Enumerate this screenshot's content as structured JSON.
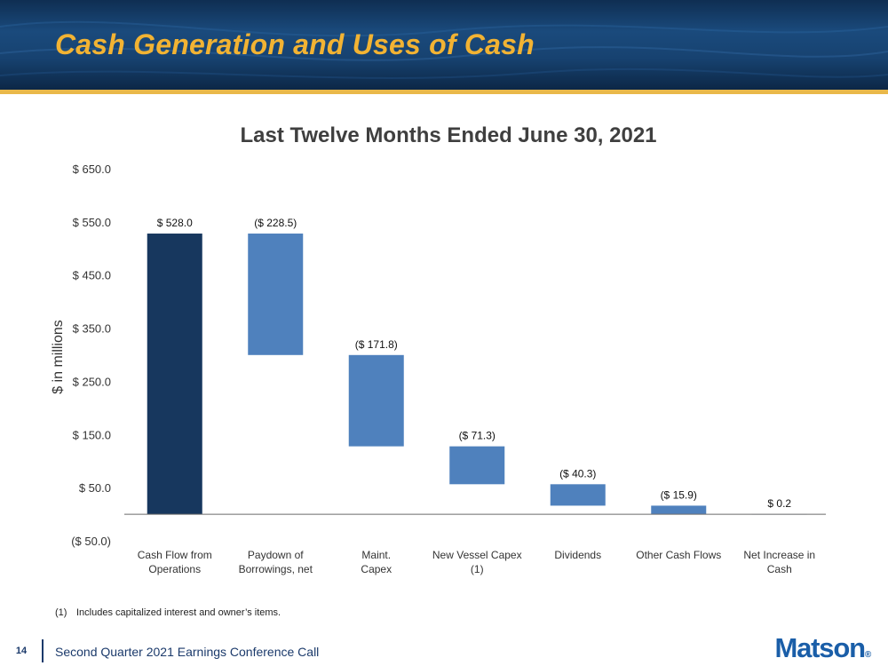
{
  "slide": {
    "title": "Cash Generation and Uses of Cash",
    "page_number": "14",
    "footer_text": "Second Quarter 2021 Earnings Conference Call",
    "logo_text": "Matson",
    "footnote_number": "(1)",
    "footnote_text": "Includes capitalized interest and owner’s items."
  },
  "colors": {
    "header_dark": "#0f2e52",
    "title_gold": "#f2b333",
    "gold_rule": "#e9b84a",
    "bar_total": "#17375e",
    "bar_change": "#4f81bd",
    "footer_blue": "#1b3a6b",
    "logo_blue": "#1a5ea8"
  },
  "chart_data": {
    "type": "bar",
    "subtype": "waterfall",
    "title": "Last Twelve Months Ended June 30, 2021",
    "ylabel": "$ in millions",
    "xlabel": "",
    "ylim": [
      -50,
      650
    ],
    "yticks": [
      -50,
      50,
      150,
      250,
      350,
      450,
      550,
      650
    ],
    "ytick_labels": [
      "($ 50.0)",
      "$ 50.0",
      "$ 150.0",
      "$ 250.0",
      "$ 350.0",
      "$ 450.0",
      "$ 550.0",
      "$ 650.0"
    ],
    "grid": false,
    "legend": "none",
    "categories": [
      [
        "Cash Flow from",
        "Operations"
      ],
      [
        "Paydown of",
        "Borrowings, net"
      ],
      [
        "Maint.",
        "Capex"
      ],
      [
        "New Vessel Capex",
        "(1)"
      ],
      [
        "Dividends"
      ],
      [
        "Other Cash Flows"
      ],
      [
        "Net Increase in",
        "Cash"
      ]
    ],
    "values": [
      528.0,
      -228.5,
      -171.8,
      -71.3,
      -40.3,
      -15.9,
      0.2
    ],
    "data_labels": [
      "$ 528.0",
      "($ 228.5)",
      "($ 171.8)",
      "($ 71.3)",
      "($ 40.3)",
      "($ 15.9)",
      "$ 0.2"
    ],
    "bar_kinds": [
      "total",
      "change",
      "change",
      "change",
      "change",
      "change",
      "total"
    ]
  }
}
